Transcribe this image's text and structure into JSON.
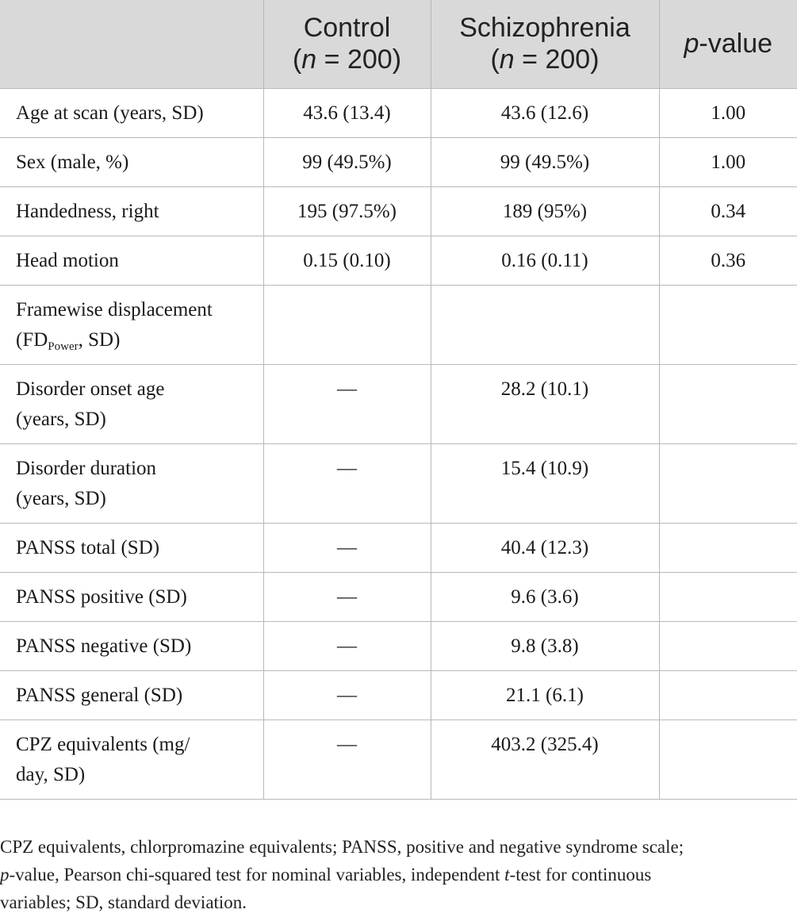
{
  "table": {
    "headers": [
      {
        "line1": "",
        "line2_prefix": "",
        "line2_italic": "",
        "line2_suffix": ""
      },
      {
        "line1": "Control",
        "line2_prefix": "(",
        "line2_italic": "n",
        "line2_suffix": " = 200)"
      },
      {
        "line1": "Schizophrenia",
        "line2_prefix": "(",
        "line2_italic": "n",
        "line2_suffix": " = 200)"
      },
      {
        "line1_italic": "p",
        "line1": "-value"
      }
    ],
    "rows": [
      {
        "label": "Age at scan (years, SD)",
        "control": "43.6 (13.4)",
        "schizophrenia": "43.6 (12.6)",
        "p": "1.00"
      },
      {
        "label": "Sex (male, %)",
        "control": "99 (49.5%)",
        "schizophrenia": "99 (49.5%)",
        "p": "1.00"
      },
      {
        "label": "Handedness, right",
        "control": "195 (97.5%)",
        "schizophrenia": "189 (95%)",
        "p": "0.34"
      },
      {
        "label": "Head motion",
        "control": "0.15 (0.10)",
        "schizophrenia": "0.16 (0.11)",
        "p": "0.36"
      },
      {
        "label_line1": "Framewise displacement",
        "label_line2_prefix": "(FD",
        "label_sub": "Power",
        "label_line2_suffix": ", SD)",
        "control": "",
        "schizophrenia": "",
        "p": ""
      },
      {
        "label_line1": "Disorder onset age",
        "label_line2": "(years, SD)",
        "control": "—",
        "schizophrenia": "28.2 (10.1)",
        "p": ""
      },
      {
        "label_line1": "Disorder duration",
        "label_line2": "(years, SD)",
        "control": "—",
        "schizophrenia": "15.4 (10.9)",
        "p": ""
      },
      {
        "label": "PANSS total (SD)",
        "control": "—",
        "schizophrenia": "40.4 (12.3)",
        "p": ""
      },
      {
        "label": "PANSS positive (SD)",
        "control": "—",
        "schizophrenia": "9.6 (3.6)",
        "p": ""
      },
      {
        "label": "PANSS negative (SD)",
        "control": "—",
        "schizophrenia": "9.8 (3.8)",
        "p": ""
      },
      {
        "label": "PANSS general (SD)",
        "control": "—",
        "schizophrenia": "21.1 (6.1)",
        "p": ""
      },
      {
        "label_line1": "CPZ equivalents (mg/",
        "label_line2": "day, SD)",
        "control": "—",
        "schizophrenia": "403.2 (325.4)",
        "p": ""
      }
    ]
  },
  "footnote": {
    "part1": "CPZ equivalents, chlorpromazine equivalents; PANSS, positive and negative syndrome scale;",
    "p_italic": "p",
    "part2": "-value, Pearson chi-squared test for nominal variables, independent ",
    "t_italic": "t",
    "part3": "-test for continuous",
    "part4": "variables; SD, standard deviation."
  },
  "colors": {
    "header_bg": "#d9d9d9",
    "border": "#b8b8b8",
    "text": "#1a1a1a"
  }
}
